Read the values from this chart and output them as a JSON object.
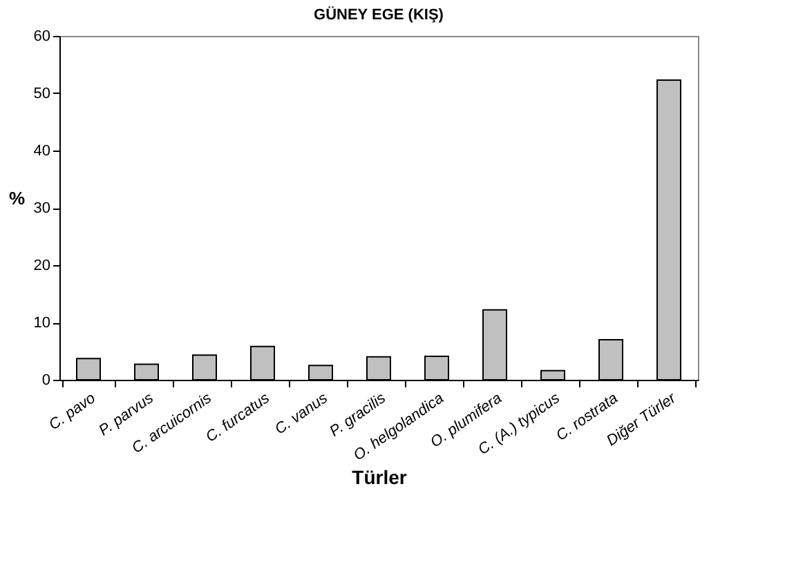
{
  "chart_data": {
    "type": "bar",
    "title": "GÜNEY EGE (KIŞ)",
    "xlabel": "Türler",
    "ylabel": "%",
    "categories": [
      "C. pavo",
      "P. parvus",
      "C. arcuicornis",
      "C. furcatus",
      "C. vanus",
      "P. gracilis",
      "O. helgolandica",
      "O. plumifera",
      "C. (A.) typicus",
      "C. rostrata",
      "Diğer Türler"
    ],
    "values": [
      3.7,
      2.7,
      4.3,
      5.8,
      2.5,
      4.0,
      4.1,
      12.2,
      1.6,
      7.0,
      52.3
    ],
    "color": "#c0c0c0",
    "ylim": [
      0,
      60
    ],
    "yticks": [
      0,
      10,
      20,
      30,
      40,
      50,
      60
    ],
    "grid": false
  }
}
